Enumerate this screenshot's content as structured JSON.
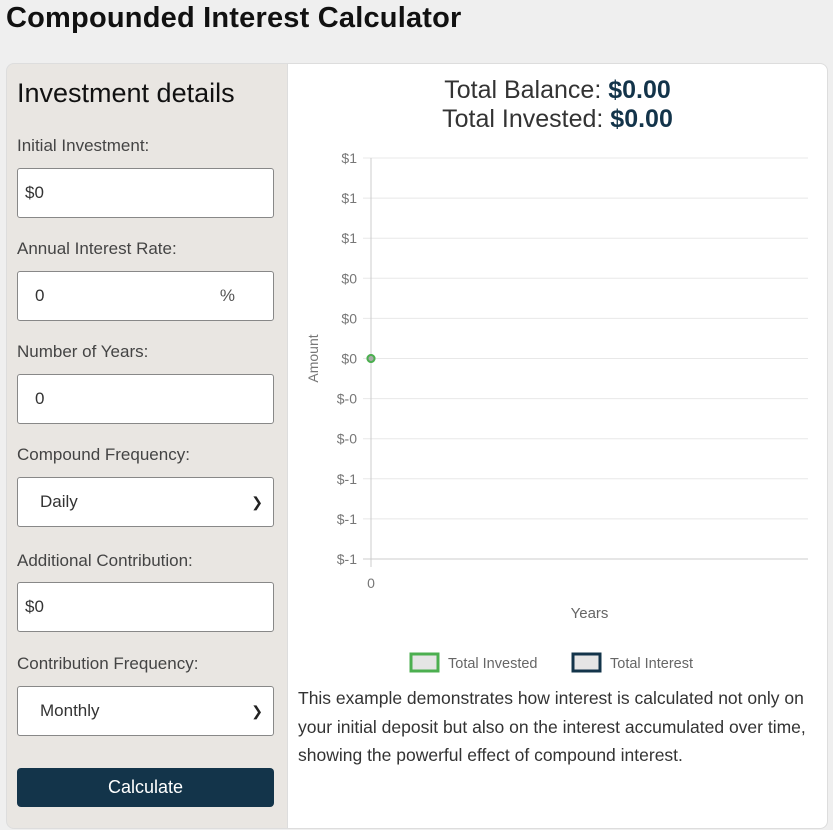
{
  "title": "Compounded Interest Calculator",
  "form": {
    "heading": "Investment details",
    "initial_label": "Initial Investment:",
    "initial_value": "$0",
    "rate_label": "Annual Interest Rate:",
    "rate_value": "0",
    "rate_unit": "%",
    "years_label": "Number of Years:",
    "years_value": "0",
    "compound_label": "Compound Frequency:",
    "compound_value": "Daily",
    "contrib_label": "Additional Contribution:",
    "contrib_value": "$0",
    "contrib_freq_label": "Contribution Frequency:",
    "contrib_freq_value": "Monthly",
    "calculate_label": "Calculate"
  },
  "results": {
    "balance_label": "Total Balance:",
    "balance_value": "$0.00",
    "invested_label": "Total Invested:",
    "invested_value": "$0.00"
  },
  "chart_data": {
    "type": "line",
    "xlabel": "Years",
    "ylabel": "Amount",
    "x_ticks": [
      "0"
    ],
    "y_ticks": [
      {
        "v": 1,
        "label": "$1"
      },
      {
        "v": 0.8,
        "label": "$1"
      },
      {
        "v": 0.6,
        "label": "$1"
      },
      {
        "v": 0.4,
        "label": "$0"
      },
      {
        "v": 0.2,
        "label": "$0"
      },
      {
        "v": 0,
        "label": "$0"
      },
      {
        "v": -0.2,
        "label": "$-0"
      },
      {
        "v": -0.4,
        "label": "$-0"
      },
      {
        "v": -0.6,
        "label": "$-1"
      },
      {
        "v": -0.8,
        "label": "$-1"
      },
      {
        "v": -1,
        "label": "$-1"
      }
    ],
    "ylim": [
      -1,
      1
    ],
    "grid": true,
    "legend_placement": "bottom",
    "series": [
      {
        "name": "Total Invested",
        "x": [
          0
        ],
        "y": [
          0
        ],
        "color": "#4caf50"
      },
      {
        "name": "Total Interest",
        "x": [
          0
        ],
        "y": [
          0
        ],
        "color": "#13344a"
      }
    ]
  },
  "description": "This example demonstrates how interest is calculated not only on your initial deposit but also on the interest accumulated over time, showing the powerful effect of compound interest."
}
